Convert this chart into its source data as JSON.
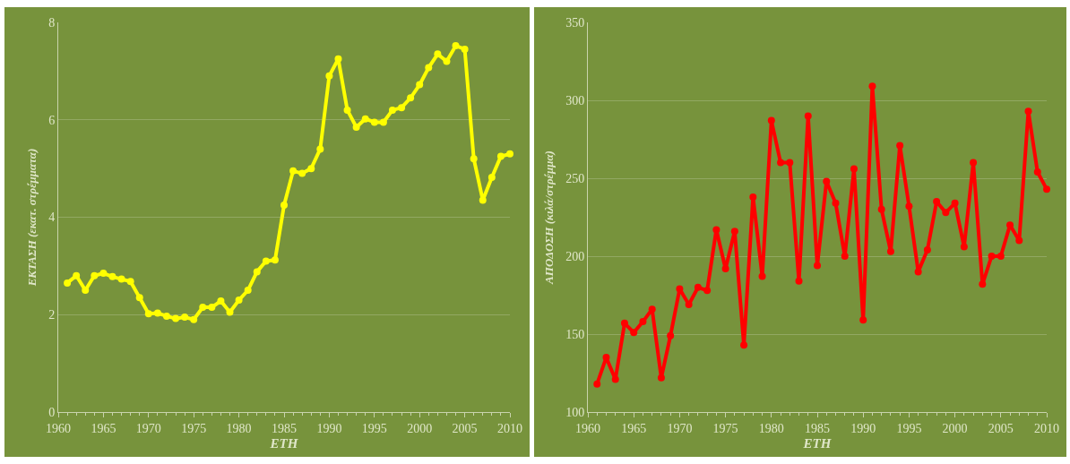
{
  "chart_data": [
    {
      "type": "line",
      "xlabel": "ΕΤΗ",
      "ylabel": "ΕΚΤΑΣΗ (εκατ. στρέμματα)",
      "x": [
        1961,
        1962,
        1963,
        1964,
        1965,
        1966,
        1967,
        1968,
        1969,
        1970,
        1971,
        1972,
        1973,
        1974,
        1975,
        1976,
        1977,
        1978,
        1979,
        1980,
        1981,
        1982,
        1983,
        1984,
        1985,
        1986,
        1987,
        1988,
        1989,
        1990,
        1991,
        1992,
        1993,
        1994,
        1995,
        1996,
        1997,
        1998,
        1999,
        2000,
        2001,
        2002,
        2003,
        2004,
        2005,
        2006,
        2007,
        2008,
        2009,
        2010
      ],
      "series": [
        {
          "color": "#ffff00",
          "values": [
            2.65,
            2.8,
            2.5,
            2.8,
            2.85,
            2.78,
            2.73,
            2.68,
            2.35,
            2.02,
            2.03,
            1.97,
            1.92,
            1.95,
            1.9,
            2.15,
            2.15,
            2.28,
            2.05,
            2.3,
            2.5,
            2.88,
            3.1,
            3.12,
            4.25,
            4.95,
            4.9,
            5.0,
            5.4,
            6.9,
            7.25,
            6.2,
            5.85,
            6.02,
            5.95,
            5.95,
            6.2,
            6.25,
            6.45,
            6.72,
            7.07,
            7.35,
            7.2,
            7.52,
            7.45,
            5.2,
            4.35,
            4.82,
            5.25,
            5.3
          ]
        }
      ],
      "xlim": [
        1960,
        2010
      ],
      "xticks": [
        1960,
        1965,
        1970,
        1975,
        1980,
        1985,
        1990,
        1995,
        2000,
        2005,
        2010
      ],
      "ylim": [
        0,
        8
      ],
      "yticks": [
        0,
        2,
        4,
        6,
        8
      ],
      "grid": "y",
      "marker": "circle",
      "line_style": "solid"
    },
    {
      "type": "line",
      "xlabel": "ΕΤΗ",
      "ylabel": "ΑΠΟΔΟΣΗ (κιλά/στρέμμα)",
      "x": [
        1961,
        1962,
        1963,
        1964,
        1965,
        1966,
        1967,
        1968,
        1969,
        1970,
        1971,
        1972,
        1973,
        1974,
        1975,
        1976,
        1977,
        1978,
        1979,
        1980,
        1981,
        1982,
        1983,
        1984,
        1985,
        1986,
        1987,
        1988,
        1989,
        1990,
        1991,
        1992,
        1993,
        1994,
        1995,
        1996,
        1997,
        1998,
        1999,
        2000,
        2001,
        2002,
        2003,
        2004,
        2005,
        2006,
        2007,
        2008,
        2009,
        2010
      ],
      "series": [
        {
          "color": "#ff0000",
          "values": [
            118,
            135,
            121,
            157,
            151,
            158,
            166,
            122,
            149,
            179,
            169,
            180,
            178,
            217,
            192,
            216,
            143,
            238,
            187,
            287,
            260,
            260,
            184,
            290,
            194,
            248,
            234,
            200,
            256,
            159,
            309,
            230,
            203,
            271,
            232,
            190,
            204,
            235,
            228,
            234,
            206,
            260,
            182,
            200,
            200,
            220,
            210,
            293,
            254,
            243
          ]
        }
      ],
      "xlim": [
        1960,
        2010
      ],
      "xticks": [
        1960,
        1965,
        1970,
        1975,
        1980,
        1985,
        1990,
        1995,
        2000,
        2005,
        2010
      ],
      "ylim": [
        100,
        350
      ],
      "yticks": [
        100,
        150,
        200,
        250,
        300,
        350
      ],
      "grid": "y",
      "marker": "circle",
      "line_style": "solid"
    }
  ]
}
